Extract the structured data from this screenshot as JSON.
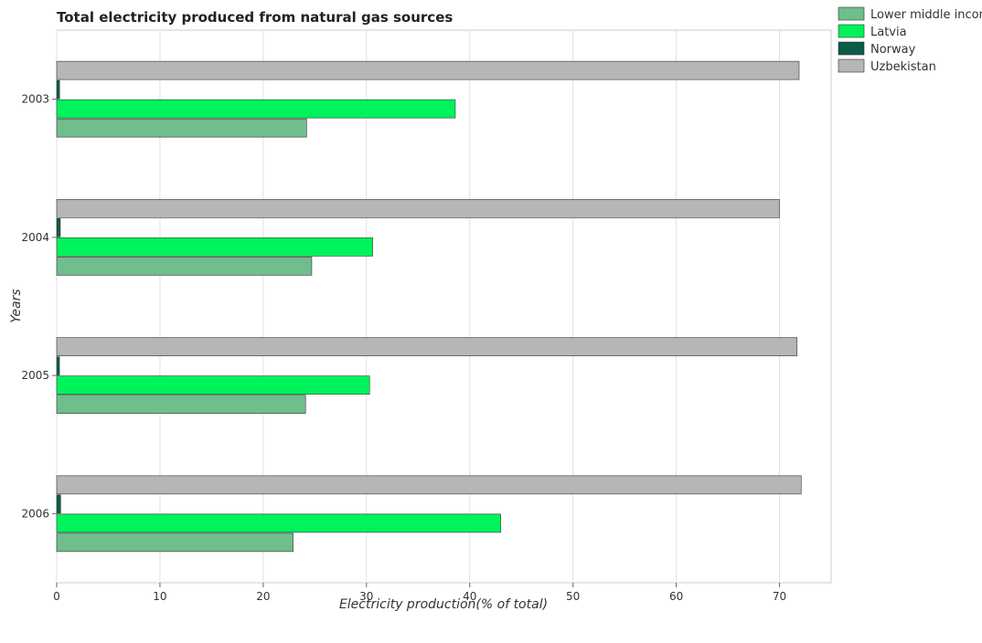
{
  "chart_data": {
    "type": "bar",
    "orientation": "horizontal",
    "title": "Total electricity produced from natural gas sources",
    "xlabel": "Electricity production(% of total)",
    "ylabel": "Years",
    "categories": [
      "2003",
      "2004",
      "2005",
      "2006"
    ],
    "series": [
      {
        "name": "Lower middle income",
        "color": "#6fbe8b",
        "values": [
          24.2,
          24.7,
          24.1,
          22.9
        ]
      },
      {
        "name": "Latvia",
        "color": "#00f35a",
        "values": [
          38.6,
          30.6,
          30.3,
          43.0
        ]
      },
      {
        "name": "Norway",
        "color": "#0b5d48",
        "values": [
          0.28,
          0.35,
          0.27,
          0.38
        ]
      },
      {
        "name": "Uzbekistan",
        "color": "#b6b6b6",
        "values": [
          71.9,
          70.0,
          71.7,
          72.1
        ]
      }
    ],
    "xlim": [
      0,
      75
    ],
    "xticks": [
      0,
      10,
      20,
      30,
      40,
      50,
      60,
      70
    ],
    "grid": true,
    "legend_position": "top-right"
  }
}
